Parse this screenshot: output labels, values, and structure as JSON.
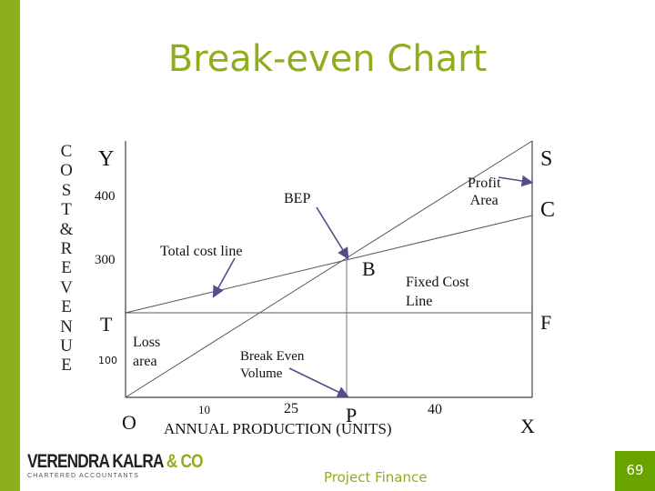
{
  "title": "Break-even Chart",
  "y_axis_label_letters": [
    "C",
    "O",
    "S",
    "T",
    "&",
    "R",
    "E",
    "V",
    "E",
    "N",
    "U",
    "E"
  ],
  "labels": {
    "y": "Y",
    "t": "T",
    "o": "O",
    "x": "X",
    "s": "S",
    "c": "C",
    "f": "F",
    "b": "B",
    "p": "P",
    "bep": "BEP",
    "profit_area": [
      "Profit",
      "Area"
    ],
    "total_cost_line": "Total cost line",
    "fixed_cost_line": [
      "Fixed Cost",
      "Line"
    ],
    "loss_area": [
      "Loss",
      "area"
    ],
    "break_even_volume": [
      "Break Even",
      "Volume"
    ],
    "x_axis_title": "ANNUAL PRODUCTION (UNITS)"
  },
  "y_ticks": [
    "400",
    "300",
    "100"
  ],
  "x_ticks": [
    "10",
    "25",
    "40"
  ],
  "footer": "Project Finance",
  "page_number": "69",
  "logo": {
    "main": "VERENDRA KALRA",
    "amp": "& CO",
    "sub": "CHARTERED ACCOUNTANTS"
  },
  "colors": {
    "accent": "#8fae1b",
    "page_badge": "#6aa300",
    "pointer": "#5a4a8a"
  }
}
